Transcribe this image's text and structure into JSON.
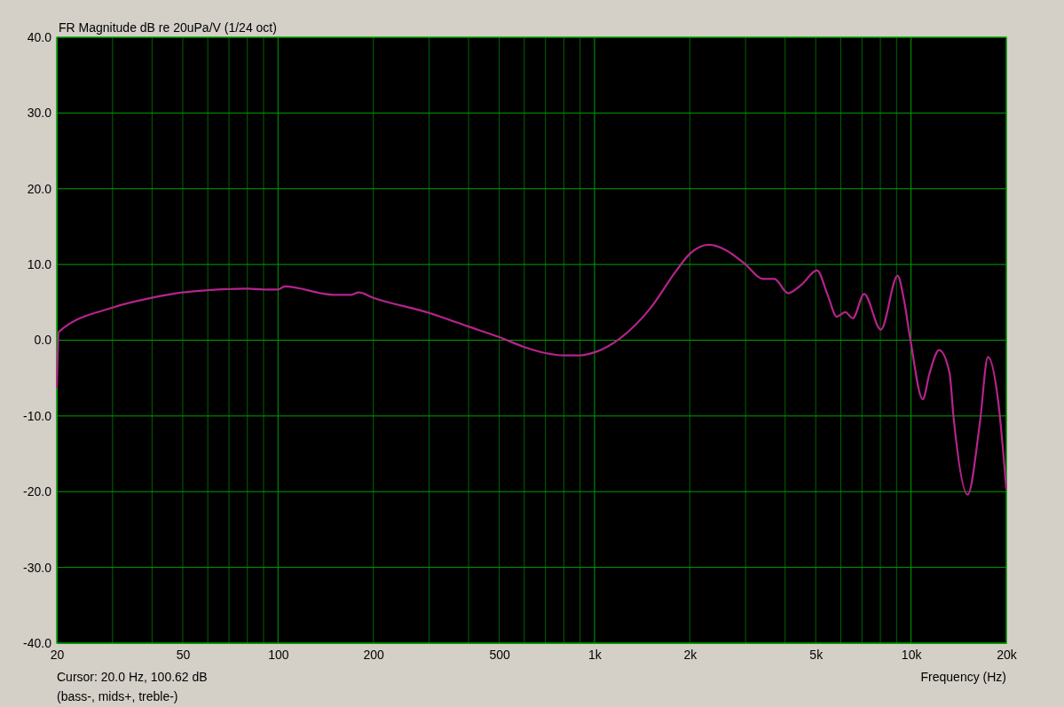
{
  "chart_data": {
    "type": "line",
    "title": "FR Magnitude dB re 20uPa/V (1/24 oct)",
    "xlabel": "Frequency (Hz)",
    "annotations": [
      "Cursor: 20.0 Hz, 100.62 dB",
      "(bass-, mids+, treble-)"
    ],
    "log": "x",
    "grid": true,
    "marker": "none",
    "line_style": "solid",
    "xlim": [
      20,
      20000
    ],
    "ylim": [
      -40,
      40
    ],
    "xticks": [
      20,
      {
        "value": 30,
        "label": null
      },
      {
        "value": 40,
        "label": null
      },
      50,
      {
        "value": 60,
        "label": null
      },
      {
        "value": 70,
        "label": null
      },
      {
        "value": 80,
        "label": null
      },
      {
        "value": 90,
        "label": null
      },
      100,
      200,
      {
        "value": 300,
        "label": null
      },
      {
        "value": 400,
        "label": null
      },
      500,
      {
        "value": 600,
        "label": null
      },
      {
        "value": 700,
        "label": null
      },
      {
        "value": 800,
        "label": null
      },
      {
        "value": 900,
        "label": null
      },
      {
        "value": 1000,
        "label": "1k"
      },
      {
        "value": 2000,
        "label": "2k"
      },
      {
        "value": 3000,
        "label": null
      },
      {
        "value": 4000,
        "label": null
      },
      {
        "value": 5000,
        "label": "5k"
      },
      {
        "value": 6000,
        "label": null
      },
      {
        "value": 7000,
        "label": null
      },
      {
        "value": 8000,
        "label": null
      },
      {
        "value": 9000,
        "label": null
      },
      {
        "value": 10000,
        "label": "10k"
      },
      {
        "value": 20000,
        "label": "20k"
      }
    ],
    "yticks": [
      {
        "value": -40,
        "label": "-40.0"
      },
      {
        "value": -30,
        "label": "-30.0"
      },
      {
        "value": -20,
        "label": "-20.0"
      },
      {
        "value": -10,
        "label": "-10.0"
      },
      {
        "value": 0,
        "label": "0.0"
      },
      {
        "value": 10,
        "label": "10.0"
      },
      {
        "value": 20,
        "label": "20.0"
      },
      {
        "value": 30,
        "label": "30.0"
      },
      {
        "value": 40,
        "label": "40.0"
      }
    ],
    "series": [
      {
        "color": "#b4248c",
        "x": [
          20,
          20.3,
          30,
          40,
          50,
          60,
          80,
          90,
          100,
          105,
          150,
          170,
          180,
          200,
          300,
          400,
          500,
          600,
          700,
          800,
          900,
          1000,
          1200,
          1500,
          1800,
          2000,
          2300,
          2600,
          3000,
          3400,
          3700,
          4085,
          4500,
          5045,
          5460,
          5825,
          6200,
          6545,
          7110,
          8030,
          9070,
          9480,
          9960,
          10890,
          11450,
          12270,
          13230,
          13620,
          15100,
          16500,
          17500,
          18870,
          20000
        ],
        "values": [
          -6.3,
          1.1,
          4.3,
          5.6,
          6.3,
          6.6,
          6.8,
          6.7,
          6.7,
          7.1,
          6.0,
          6.0,
          6.3,
          5.6,
          3.6,
          1.8,
          0.4,
          -0.9,
          -1.7,
          -2.0,
          -2.0,
          -1.6,
          0.2,
          4.2,
          9.0,
          11.4,
          12.6,
          11.9,
          10.0,
          8.1,
          8.1,
          6.2,
          7.3,
          9.2,
          5.9,
          3.1,
          3.7,
          2.9,
          6.1,
          1.4,
          8.5,
          5.5,
          0.0,
          -7.8,
          -4.3,
          -1.3,
          -4.3,
          -10.1,
          -20.4,
          -10.9,
          -2.2,
          -8.2,
          -19.7
        ]
      }
    ]
  }
}
